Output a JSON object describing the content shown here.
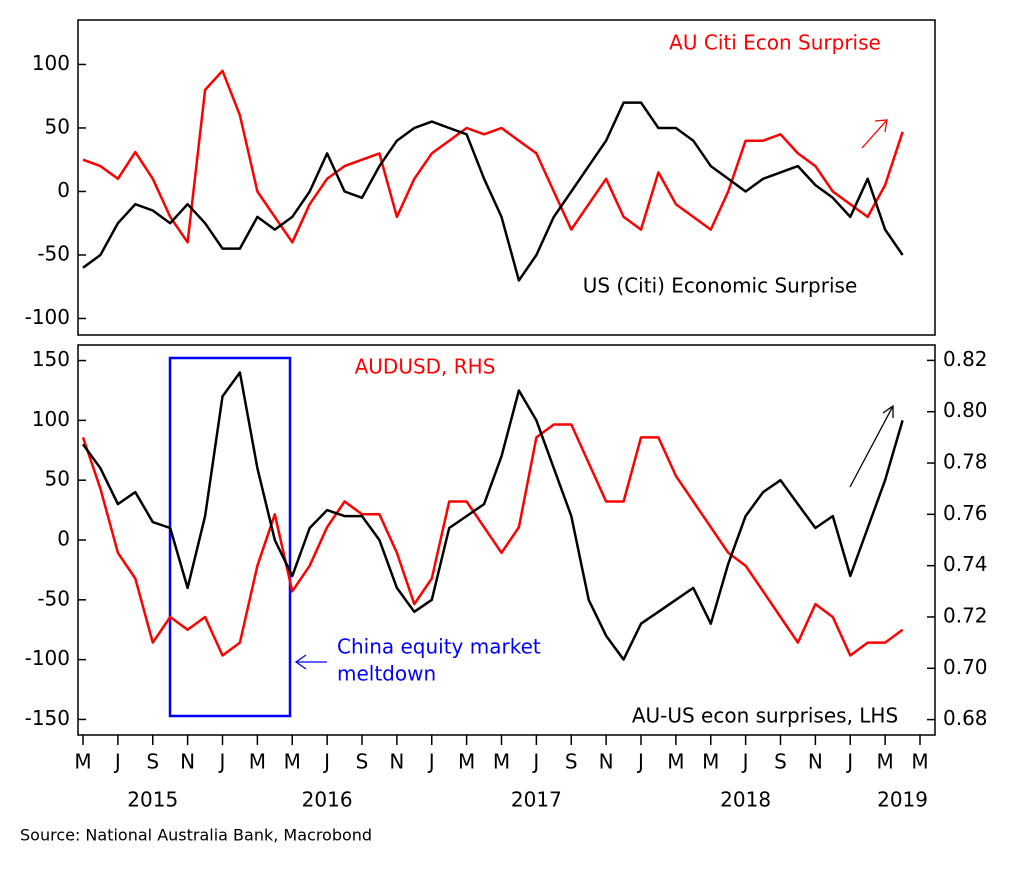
{
  "chart_data": [
    {
      "type": "line",
      "x": [
        "2015-05",
        "2015-06",
        "2015-07",
        "2015-08",
        "2015-09",
        "2015-10",
        "2015-11",
        "2015-12",
        "2016-01",
        "2016-02",
        "2016-03",
        "2016-04",
        "2016-05",
        "2016-06",
        "2016-07",
        "2016-08",
        "2016-09",
        "2016-10",
        "2016-11",
        "2016-12",
        "2017-01",
        "2017-02",
        "2017-03",
        "2017-04",
        "2017-05",
        "2017-06",
        "2017-07",
        "2017-08",
        "2017-09",
        "2017-10",
        "2017-11",
        "2017-12",
        "2018-01",
        "2018-02",
        "2018-03",
        "2018-04",
        "2018-05",
        "2018-06",
        "2018-07",
        "2018-08",
        "2018-09",
        "2018-10",
        "2018-11",
        "2018-12",
        "2019-01",
        "2019-02",
        "2019-03",
        "2019-04"
      ],
      "xlim": [
        "2015-05",
        "2019-05"
      ],
      "ylim": [
        -113,
        135
      ],
      "yticks": [
        -100,
        -50,
        0,
        50,
        100
      ],
      "series": [
        {
          "name": "AU Citi Econ Surprise",
          "color": "#ff0000",
          "values": [
            25,
            20,
            10,
            31,
            10,
            -20,
            -40,
            80,
            95,
            60,
            0,
            -20,
            -40,
            -10,
            10,
            20,
            25,
            30,
            -20,
            10,
            30,
            40,
            50,
            45,
            50,
            40,
            30,
            0,
            -30,
            -10,
            10,
            -20,
            -30,
            15,
            -10,
            -20,
            -30,
            0,
            40,
            40,
            45,
            30,
            20,
            0,
            -10,
            -20,
            5,
            47
          ]
        },
        {
          "name": "US (Citi) Economic Surprise",
          "color": "#000000",
          "values": [
            -60,
            -50,
            -25,
            -10,
            -15,
            -25,
            -10,
            -25,
            -45,
            -45,
            -20,
            -30,
            -20,
            0,
            30,
            0,
            -5,
            20,
            40,
            50,
            55,
            50,
            45,
            10,
            -20,
            -70,
            -50,
            -20,
            0,
            20,
            40,
            70,
            70,
            50,
            50,
            40,
            20,
            10,
            0,
            10,
            15,
            20,
            5,
            -5,
            -20,
            10,
            -30,
            -50
          ]
        }
      ]
    },
    {
      "type": "line",
      "x": [
        "2015-05",
        "2015-06",
        "2015-07",
        "2015-08",
        "2015-09",
        "2015-10",
        "2015-11",
        "2015-12",
        "2016-01",
        "2016-02",
        "2016-03",
        "2016-04",
        "2016-05",
        "2016-06",
        "2016-07",
        "2016-08",
        "2016-09",
        "2016-10",
        "2016-11",
        "2016-12",
        "2017-01",
        "2017-02",
        "2017-03",
        "2017-04",
        "2017-05",
        "2017-06",
        "2017-07",
        "2017-08",
        "2017-09",
        "2017-10",
        "2017-11",
        "2017-12",
        "2018-01",
        "2018-02",
        "2018-03",
        "2018-04",
        "2018-05",
        "2018-06",
        "2018-07",
        "2018-08",
        "2018-09",
        "2018-10",
        "2018-11",
        "2018-12",
        "2019-01",
        "2019-02",
        "2019-03",
        "2019-04"
      ],
      "xlim": [
        "2015-05",
        "2019-05"
      ],
      "xticks": [
        {
          "value": "2015-05",
          "label": "M"
        },
        {
          "value": "2015-07",
          "label": "J"
        },
        {
          "value": "2015-09",
          "label": "S"
        },
        {
          "value": "2015-11",
          "label": "N"
        },
        {
          "value": "2016-01",
          "label": "J"
        },
        {
          "value": "2016-03",
          "label": "M"
        },
        {
          "value": "2016-05",
          "label": "M"
        },
        {
          "value": "2016-07",
          "label": "J"
        },
        {
          "value": "2016-09",
          "label": "S"
        },
        {
          "value": "2016-11",
          "label": "N"
        },
        {
          "value": "2017-01",
          "label": "J"
        },
        {
          "value": "2017-03",
          "label": "M"
        },
        {
          "value": "2017-05",
          "label": "M"
        },
        {
          "value": "2017-07",
          "label": "J"
        },
        {
          "value": "2017-09",
          "label": "S"
        },
        {
          "value": "2017-11",
          "label": "N"
        },
        {
          "value": "2018-01",
          "label": "J"
        },
        {
          "value": "2018-03",
          "label": "M"
        },
        {
          "value": "2018-05",
          "label": "M"
        },
        {
          "value": "2018-07",
          "label": "J"
        },
        {
          "value": "2018-09",
          "label": "S"
        },
        {
          "value": "2018-11",
          "label": "N"
        },
        {
          "value": "2019-01",
          "label": "J"
        },
        {
          "value": "2019-03",
          "label": "M"
        },
        {
          "value": "2019-05",
          "label": "M"
        }
      ],
      "year_labels": [
        {
          "value": "2015-09",
          "label": "2015"
        },
        {
          "value": "2016-07",
          "label": "2016"
        },
        {
          "value": "2017-07",
          "label": "2017"
        },
        {
          "value": "2018-07",
          "label": "2018"
        },
        {
          "value": "2019-04",
          "label": "2019"
        }
      ],
      "ylim": [
        -163,
        163
      ],
      "yticks": [
        -150,
        -100,
        -50,
        0,
        50,
        100,
        150
      ],
      "y2lim": [
        0.674,
        0.826
      ],
      "y2ticks": [
        0.68,
        {
          "value": 0.7,
          "label": "0.70"
        },
        0.72,
        0.74,
        0.76,
        0.78,
        {
          "value": 0.8,
          "label": "0.80"
        },
        0.82
      ],
      "series": [
        {
          "name": "AUDUSD, RHS",
          "color": "#ff0000",
          "axis": "y2",
          "values": [
            0.79,
            0.77,
            0.745,
            0.735,
            0.71,
            0.72,
            0.715,
            0.72,
            0.705,
            0.71,
            0.74,
            0.76,
            0.73,
            0.74,
            0.755,
            0.765,
            0.76,
            0.76,
            0.745,
            0.725,
            0.735,
            0.765,
            0.765,
            0.755,
            0.745,
            0.755,
            0.79,
            0.795,
            0.795,
            0.78,
            0.765,
            0.765,
            0.79,
            0.79,
            0.775,
            0.765,
            0.755,
            0.745,
            0.74,
            0.73,
            0.72,
            0.71,
            0.725,
            0.72,
            0.705,
            0.71,
            0.71,
            0.715
          ]
        },
        {
          "name": "AU-US econ surprises, LHS",
          "color": "#000000",
          "values": [
            80,
            60,
            30,
            40,
            15,
            10,
            -40,
            20,
            120,
            140,
            60,
            0,
            -30,
            10,
            25,
            20,
            20,
            0,
            -40,
            -60,
            -50,
            10,
            20,
            30,
            70,
            125,
            100,
            60,
            20,
            -50,
            -80,
            -100,
            -70,
            -60,
            -50,
            -40,
            -70,
            -20,
            20,
            40,
            50,
            30,
            10,
            20,
            -30,
            10,
            50,
            100
          ]
        }
      ],
      "annotations": [
        "China equity market",
        "meltdown"
      ],
      "source": "Source: National Australia Bank, Macrobond"
    }
  ]
}
